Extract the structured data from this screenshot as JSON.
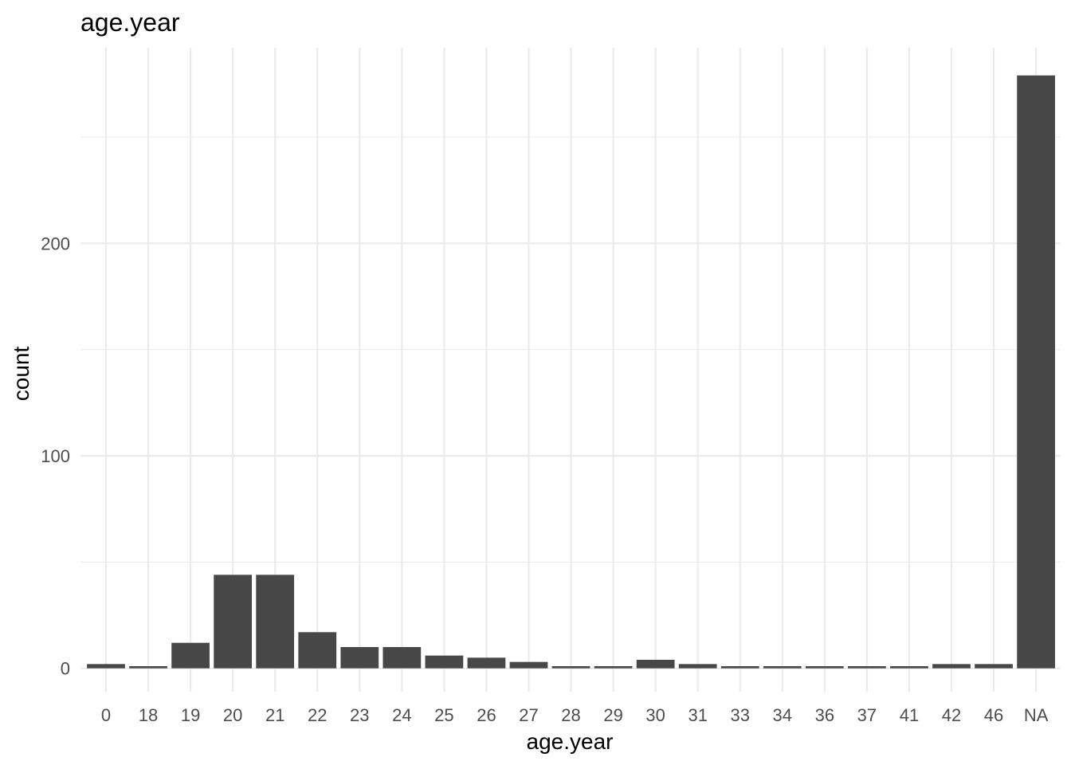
{
  "chart_data": {
    "type": "bar",
    "title": "age.year",
    "xlabel": "age.year",
    "ylabel": "count",
    "categories": [
      "0",
      "18",
      "19",
      "20",
      "21",
      "22",
      "23",
      "24",
      "25",
      "26",
      "27",
      "28",
      "29",
      "30",
      "31",
      "33",
      "34",
      "36",
      "37",
      "41",
      "42",
      "46",
      "NA"
    ],
    "values": [
      2,
      1,
      12,
      44,
      44,
      17,
      10,
      10,
      6,
      5,
      3,
      1,
      1,
      4,
      2,
      1,
      1,
      1,
      1,
      1,
      2,
      2,
      279
    ],
    "ylim": [
      -11,
      292
    ],
    "yticks": [
      0,
      100,
      200
    ],
    "grid": true,
    "colors": {
      "bar": "#474747",
      "grid": "#ebebeb",
      "background": "#ffffff"
    }
  }
}
